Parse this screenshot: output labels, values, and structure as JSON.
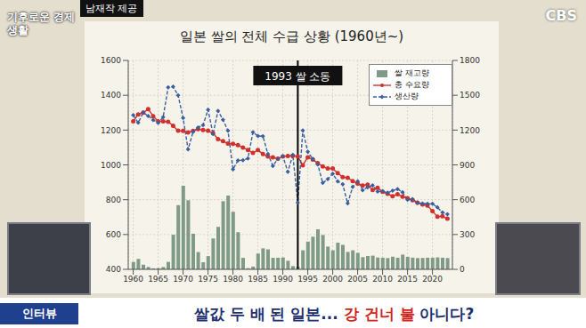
{
  "chart_data": {
    "type": "bar_line",
    "title": "일본 쌀의 전체 수급 상황 (1960년~)",
    "x": [
      1960,
      1961,
      1962,
      1963,
      1964,
      1965,
      1966,
      1967,
      1968,
      1969,
      1970,
      1971,
      1972,
      1973,
      1974,
      1975,
      1976,
      1977,
      1978,
      1979,
      1980,
      1981,
      1982,
      1983,
      1984,
      1985,
      1986,
      1987,
      1988,
      1989,
      1990,
      1991,
      1992,
      1993,
      1994,
      1995,
      1996,
      1997,
      1998,
      1999,
      2000,
      2001,
      2002,
      2003,
      2004,
      2005,
      2006,
      2007,
      2008,
      2009,
      2010,
      2011,
      2012,
      2013,
      2014,
      2015,
      2016,
      2017,
      2018,
      2019,
      2020,
      2021,
      2022,
      2023
    ],
    "series": [
      {
        "name": "쌀 재고량",
        "type": "bar",
        "axis": "y2",
        "color": "#7f9a86",
        "values": [
          64,
          90,
          40,
          20,
          8,
          10,
          20,
          64,
          298,
          553,
          720,
          595,
          307,
          149,
          61,
          114,
          266,
          366,
          587,
          636,
          496,
          320,
          99,
          10,
          24,
          136,
          181,
          172,
          99,
          100,
          102,
          74,
          28,
          23,
          164,
          239,
          281,
          345,
          296,
          196,
          164,
          230,
          211,
          150,
          164,
          142,
          105,
          115,
          118,
          102,
          100,
          97,
          109,
          100,
          127,
          108,
          101,
          97,
          98,
          100,
          100,
          103,
          100,
          97
        ]
      },
      {
        "name": "총 수요량",
        "type": "line",
        "color": "#d0312d",
        "marker": "circle",
        "line_style": "solid",
        "values": [
          1250,
          1290,
          1300,
          1320,
          1280,
          1250,
          1250,
          1248,
          1225,
          1196,
          1195,
          1186,
          1195,
          1205,
          1201,
          1196,
          1182,
          1148,
          1136,
          1122,
          1121,
          1113,
          1099,
          1086,
          1069,
          1085,
          1062,
          1048,
          1043,
          1036,
          1048,
          1051,
          1052,
          1048,
          998,
          1044,
          1031,
          1010,
          991,
          979,
          979,
          953,
          930,
          926,
          907,
          893,
          881,
          887,
          856,
          868,
          845,
          834,
          820,
          831,
          817,
          808,
          797,
          783,
          773,
          766,
          735,
          702,
          705,
          691
        ]
      },
      {
        "name": "생산량",
        "type": "line",
        "color": "#3a5fa0",
        "marker": "diamond",
        "line_style": "dashed",
        "values": [
          1286,
          1242,
          1301,
          1281,
          1258,
          1241,
          1275,
          1445,
          1449,
          1400,
          1269,
          1089,
          1190,
          1215,
          1229,
          1317,
          1177,
          1310,
          1259,
          1196,
          975,
          1026,
          1027,
          1037,
          1188,
          1166,
          1165,
          1063,
          994,
          1035,
          1050,
          960,
          1057,
          783,
          1198,
          1075,
          1034,
          1003,
          896,
          918,
          949,
          906,
          889,
          779,
          873,
          906,
          855,
          871,
          882,
          847,
          848,
          840,
          852,
          861,
          843,
          799,
          804,
          782,
          778,
          776,
          776,
          756,
          727,
          717
        ]
      }
    ],
    "xlim": [
      1959,
      2024
    ],
    "xticks": [
      1960,
      1965,
      1970,
      1975,
      1980,
      1985,
      1990,
      1995,
      2000,
      2005,
      2010,
      2015,
      2020
    ],
    "ylim": [
      400,
      1600
    ],
    "yticks": [
      400,
      600,
      800,
      1000,
      1200,
      1400,
      1600
    ],
    "y2lim": [
      0,
      1800
    ],
    "y2ticks": [
      0,
      300,
      600,
      900,
      1200,
      1500,
      1800
    ],
    "grid": true,
    "legend": "top-right",
    "annotations": [
      {
        "x": 1993,
        "text": "1993 쌀 소동"
      }
    ]
  },
  "overlay": {
    "program": "기후로운 경제생활",
    "source": "남재작 제공",
    "channel": "CBS",
    "tag": "인터뷰",
    "headline": [
      "쌀값 두 배 된 일본...",
      "강 건너 불",
      "아니다?"
    ]
  }
}
